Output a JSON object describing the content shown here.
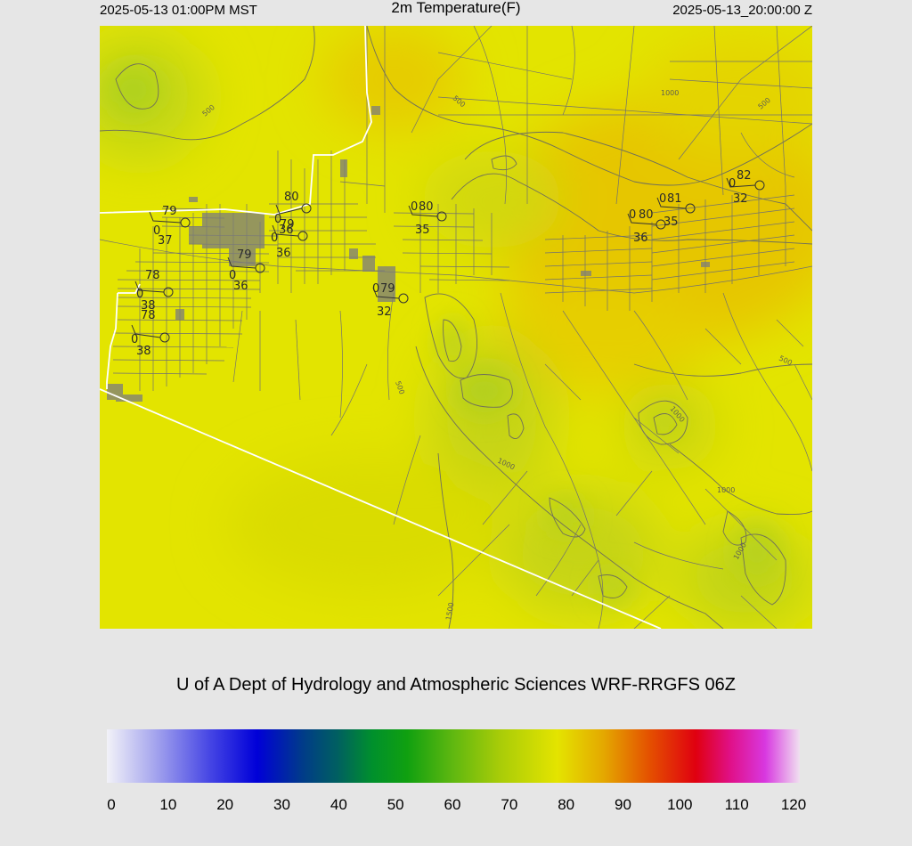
{
  "header": {
    "local_time": "2025-05-13 01:00PM MST",
    "title": "2m Temperature(F)",
    "utc_time": "2025-05-13_20:00:00 Z"
  },
  "credit": "U of A Dept of Hydrology and Atmospheric Sciences WRF-RRGFS 06Z",
  "colorbar": {
    "ticks": [
      "0",
      "10",
      "20",
      "30",
      "40",
      "50",
      "60",
      "70",
      "80",
      "90",
      "100",
      "110",
      "120"
    ],
    "stops": [
      {
        "value": 0,
        "color": "#f2f2f8"
      },
      {
        "value": 8,
        "color": "#a8a8ee"
      },
      {
        "value": 18,
        "color": "#4444e4"
      },
      {
        "value": 26,
        "color": "#0000d8"
      },
      {
        "value": 34,
        "color": "#003c88"
      },
      {
        "value": 40,
        "color": "#006060"
      },
      {
        "value": 46,
        "color": "#00902c"
      },
      {
        "value": 52,
        "color": "#10a010"
      },
      {
        "value": 60,
        "color": "#60b810"
      },
      {
        "value": 68,
        "color": "#a8cc08"
      },
      {
        "value": 78,
        "color": "#e4e400"
      },
      {
        "value": 86,
        "color": "#e4a800"
      },
      {
        "value": 94,
        "color": "#e45000"
      },
      {
        "value": 102,
        "color": "#e00010"
      },
      {
        "value": 108,
        "color": "#e01088"
      },
      {
        "value": 114,
        "color": "#d838e0"
      },
      {
        "value": 120,
        "color": "#f0e0f0"
      }
    ]
  },
  "map": {
    "elevation_contour_labels": [
      "500",
      "500",
      "500",
      "500",
      "500",
      "1000",
      "1000",
      "1000",
      "1000",
      "1000",
      "1500"
    ],
    "stations": [
      {
        "t": "79",
        "td": "37",
        "wx": "0"
      },
      {
        "t": "79",
        "td": "36",
        "wx": "0"
      },
      {
        "t": "80",
        "td": "36",
        "wx": "0"
      },
      {
        "t": "79",
        "td": "36",
        "wx": "0"
      },
      {
        "t": "78",
        "td": "38",
        "wx": "0"
      },
      {
        "t": "78",
        "td": "38",
        "wx": "0"
      },
      {
        "t": "80",
        "td": "35",
        "wx": "0"
      },
      {
        "t": "79",
        "td": "32",
        "wx": "0"
      },
      {
        "t": "80",
        "td": "36",
        "wx": "0"
      },
      {
        "t": "81",
        "td": "35",
        "wx": "0"
      },
      {
        "t": "82",
        "td": "32",
        "wx": "0"
      }
    ]
  }
}
